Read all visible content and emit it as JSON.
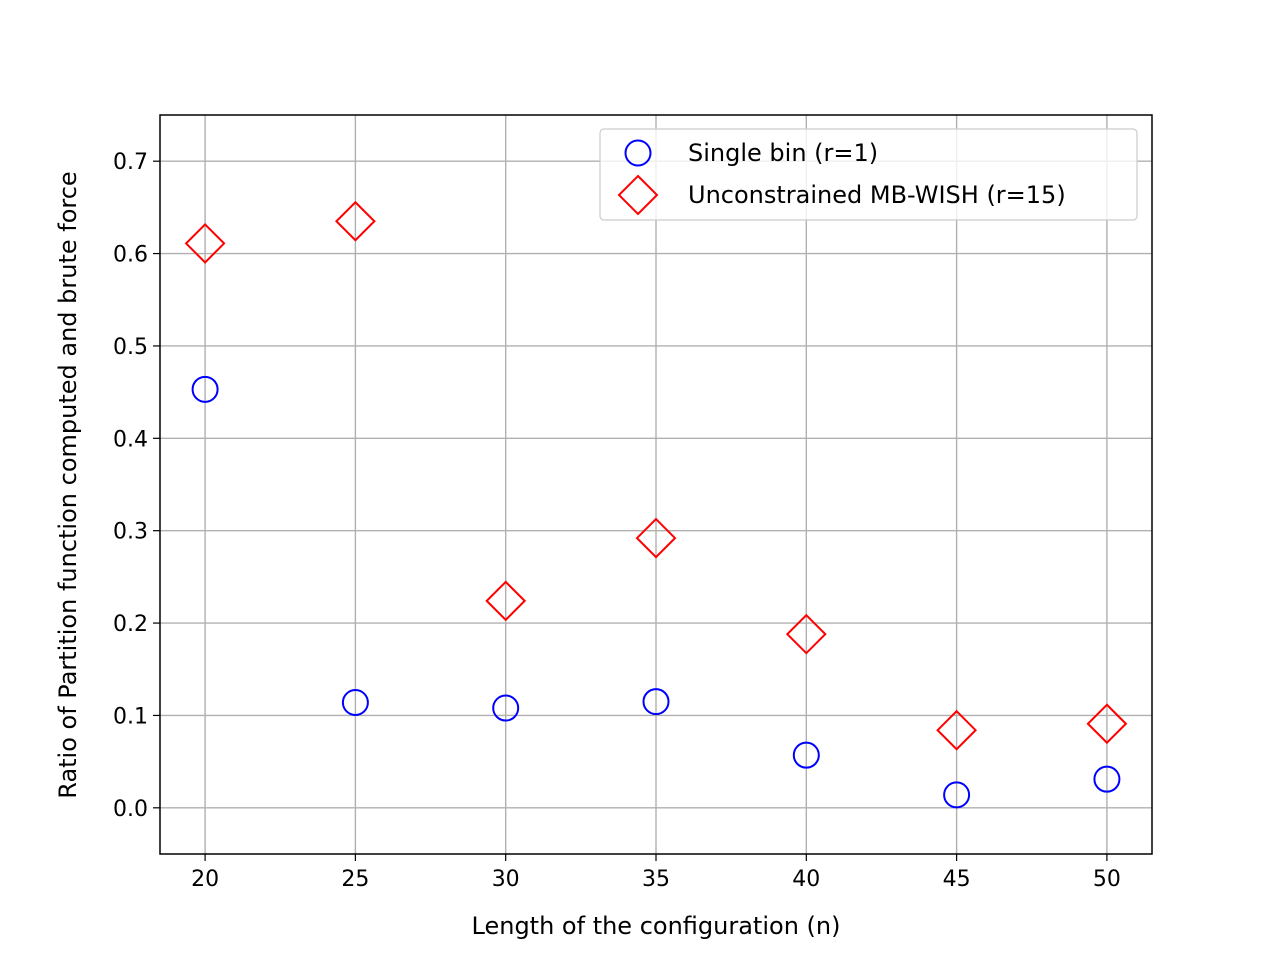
{
  "chart_data": {
    "type": "scatter",
    "title": "",
    "xlabel": "Length of the configuration (n)",
    "ylabel": "Ratio of Partition function computed and brute force",
    "xlim": [
      18.5,
      51.5
    ],
    "ylim": [
      -0.05,
      0.75
    ],
    "xticks": [
      20,
      25,
      30,
      35,
      40,
      45,
      50
    ],
    "xtick_labels": [
      "20",
      "25",
      "30",
      "35",
      "40",
      "45",
      "50"
    ],
    "yticks": [
      0.0,
      0.1,
      0.2,
      0.3,
      0.4,
      0.5,
      0.6,
      0.7
    ],
    "ytick_labels": [
      "0.0",
      "0.1",
      "0.2",
      "0.3",
      "0.4",
      "0.5",
      "0.6",
      "0.7"
    ],
    "grid": true,
    "legend_position": "top-right",
    "series": [
      {
        "name": "Single bin (r=1)",
        "marker": "circle",
        "color": "#0000ff",
        "x": [
          20,
          25,
          30,
          35,
          40,
          45,
          50
        ],
        "y": [
          0.453,
          0.114,
          0.108,
          0.115,
          0.057,
          0.014,
          0.031
        ]
      },
      {
        "name": "Unconstrained MB-WISH (r=15)",
        "marker": "diamond",
        "color": "#ff0000",
        "x": [
          20,
          25,
          30,
          35,
          40,
          45,
          50
        ],
        "y": [
          0.611,
          0.635,
          0.224,
          0.292,
          0.188,
          0.084,
          0.091
        ]
      }
    ]
  }
}
